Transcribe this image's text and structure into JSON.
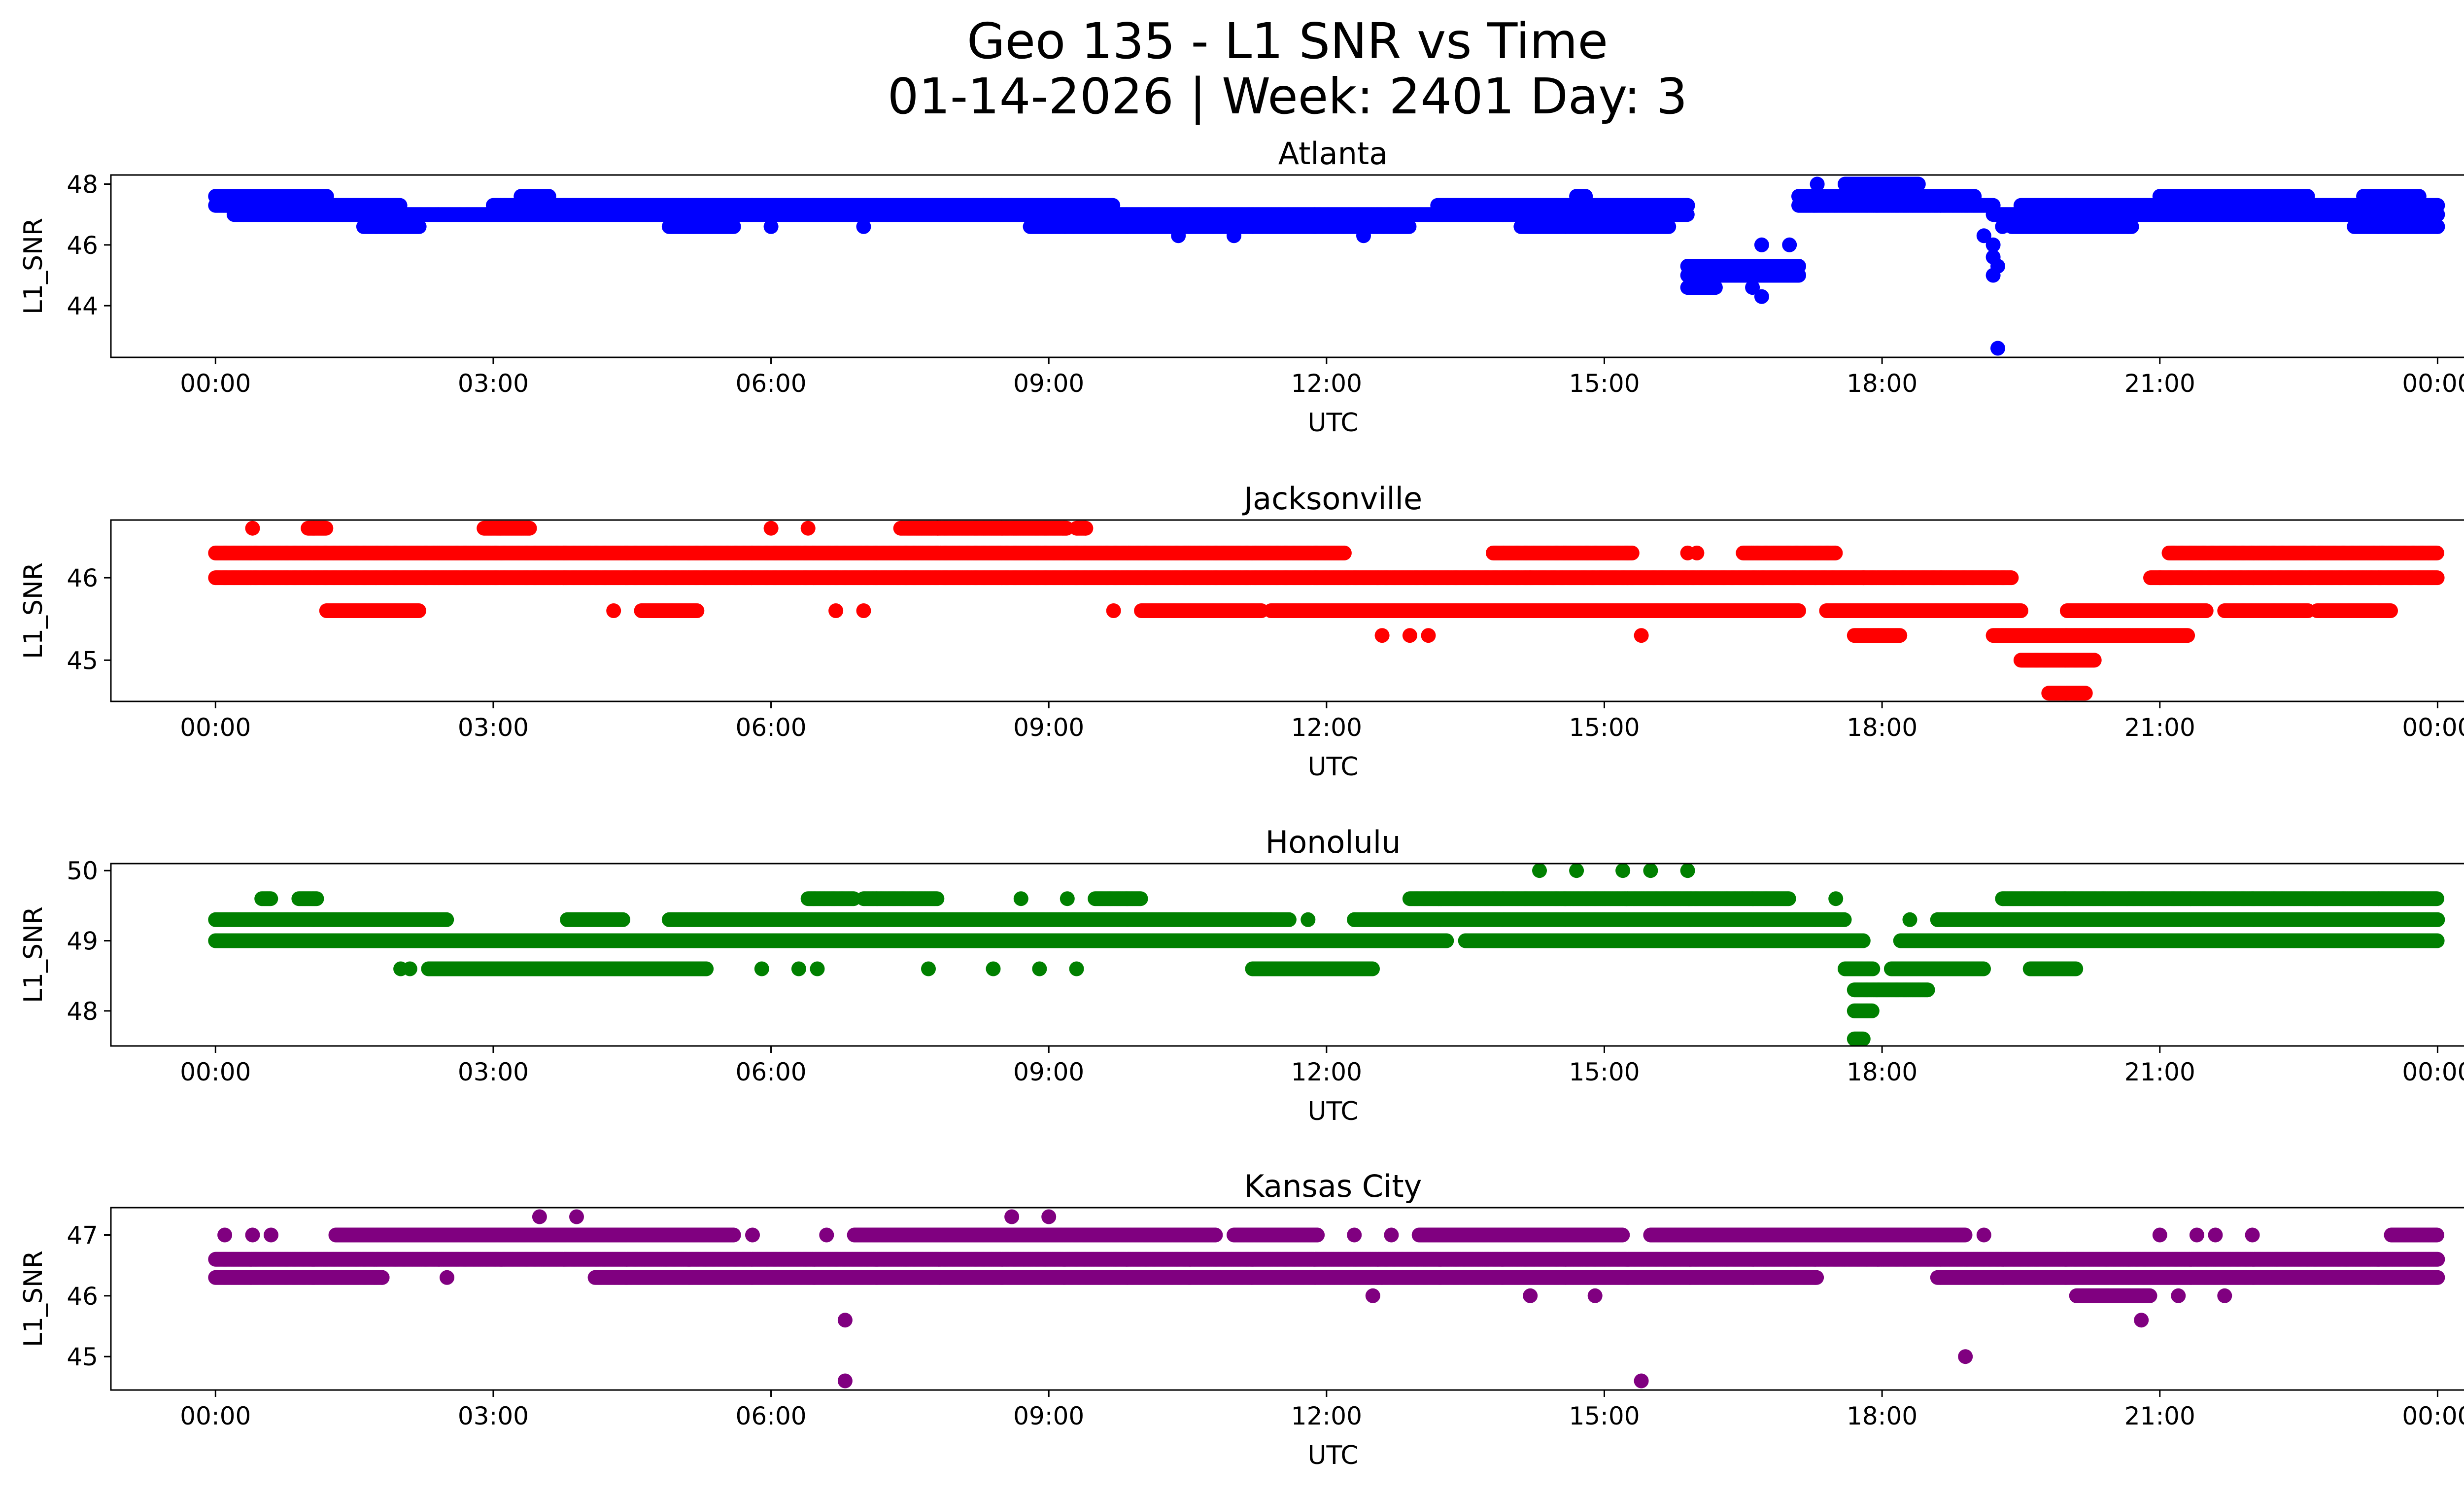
{
  "figure": {
    "title_line1": "Geo 135 - L1 SNR vs Time",
    "title_line2": "01-14-2026 | Week: 2401 Day: 3"
  },
  "chart_data": [
    {
      "type": "scatter",
      "title": "Atlanta",
      "xlabel": "UTC",
      "ylabel": "L1_SNR",
      "color": "#0000ff",
      "xlim_hours": [
        -1.13,
        25.27
      ],
      "ylim": [
        42.3,
        48.3
      ],
      "yticks": [
        44,
        46,
        48
      ],
      "xticks": [
        "00:00",
        "03:00",
        "06:00",
        "09:00",
        "12:00",
        "15:00",
        "18:00",
        "21:00",
        "00:00"
      ],
      "bands": [
        {
          "level": 47.6,
          "ranges": [
            [
              0,
              1.2
            ],
            [
              3.3,
              3.6
            ],
            [
              14.7,
              14.8
            ],
            [
              17.1,
              19.0
            ],
            [
              21.0,
              22.6
            ],
            [
              23.2,
              23.8
            ]
          ]
        },
        {
          "level": 47.3,
          "ranges": [
            [
              0,
              2.0
            ],
            [
              3.0,
              8.3
            ],
            [
              8.3,
              9.7
            ],
            [
              13.2,
              15.9
            ],
            [
              17.1,
              19.2
            ],
            [
              19.5,
              24.0
            ]
          ]
        },
        {
          "level": 47.0,
          "ranges": [
            [
              0.2,
              15.9
            ],
            [
              19.2,
              24.0
            ]
          ]
        },
        {
          "level": 46.6,
          "ranges": [
            [
              1.6,
              2.2
            ],
            [
              4.9,
              5.6
            ],
            [
              8.8,
              12.9
            ],
            [
              14.1,
              15.7
            ],
            [
              19.4,
              20.7
            ],
            [
              23.1,
              24.0
            ]
          ]
        },
        {
          "level": 48.0,
          "ranges": [
            [
              17.6,
              18.4
            ]
          ]
        },
        {
          "level": 45.3,
          "ranges": [
            [
              15.9,
              17.1
            ]
          ]
        },
        {
          "level": 45.0,
          "ranges": [
            [
              15.9,
              17.1
            ]
          ]
        },
        {
          "level": 44.6,
          "ranges": [
            [
              15.9,
              16.2
            ]
          ]
        }
      ],
      "points": [
        [
          0.3,
          47.0
        ],
        [
          6.0,
          46.6
        ],
        [
          7.0,
          46.6
        ],
        [
          10.4,
          46.3
        ],
        [
          11.0,
          46.3
        ],
        [
          12.4,
          46.3
        ],
        [
          16.6,
          44.6
        ],
        [
          16.7,
          44.3
        ],
        [
          16.7,
          46.0
        ],
        [
          17.0,
          46.0
        ],
        [
          17.3,
          48.0
        ],
        [
          19.1,
          46.3
        ],
        [
          19.2,
          46.0
        ],
        [
          19.2,
          45.6
        ],
        [
          19.25,
          45.3
        ],
        [
          19.2,
          45.0
        ],
        [
          19.3,
          46.6
        ],
        [
          19.25,
          42.6
        ],
        [
          24.0,
          46.6
        ]
      ]
    },
    {
      "type": "scatter",
      "title": "Jacksonville",
      "xlabel": "UTC",
      "ylabel": "L1_SNR",
      "color": "#ff0000",
      "xlim_hours": [
        -1.13,
        25.27
      ],
      "ylim": [
        44.5,
        46.7
      ],
      "yticks": [
        45,
        46
      ],
      "xticks": [
        "00:00",
        "03:00",
        "06:00",
        "09:00",
        "12:00",
        "15:00",
        "18:00",
        "21:00",
        "00:00"
      ],
      "bands": [
        {
          "level": 46.3,
          "ranges": [
            [
              0,
              12.2
            ],
            [
              13.8,
              15.3
            ],
            [
              16.5,
              17.5
            ],
            [
              21.1,
              24.0
            ]
          ]
        },
        {
          "level": 46.0,
          "ranges": [
            [
              0,
              14.2
            ],
            [
              14.2,
              17.8
            ],
            [
              17.8,
              19.4
            ],
            [
              20.9,
              24.0
            ]
          ]
        },
        {
          "level": 45.6,
          "ranges": [
            [
              1.2,
              2.2
            ],
            [
              4.6,
              5.2
            ],
            [
              10.0,
              11.3
            ],
            [
              11.4,
              17.1
            ],
            [
              17.4,
              19.5
            ],
            [
              20.0,
              21.5
            ],
            [
              21.7,
              22.6
            ],
            [
              22.7,
              23.5
            ]
          ]
        },
        {
          "level": 45.3,
          "ranges": [
            [
              17.7,
              18.2
            ],
            [
              19.2,
              21.3
            ]
          ]
        },
        {
          "level": 45.0,
          "ranges": [
            [
              19.5,
              20.3
            ]
          ]
        },
        {
          "level": 44.6,
          "ranges": [
            [
              19.8,
              20.2
            ]
          ]
        },
        {
          "level": 46.6,
          "ranges": [
            [
              1.0,
              1.2
            ],
            [
              2.9,
              3.4
            ],
            [
              7.4,
              7.8
            ],
            [
              7.8,
              9.2
            ],
            [
              9.3,
              9.4
            ]
          ]
        }
      ],
      "points": [
        [
          0.4,
          46.6
        ],
        [
          6.0,
          46.6
        ],
        [
          6.4,
          46.6
        ],
        [
          9.4,
          46.6
        ],
        [
          4.3,
          45.6
        ],
        [
          6.7,
          45.6
        ],
        [
          7.0,
          45.6
        ],
        [
          9.7,
          45.6
        ],
        [
          12.6,
          45.3
        ],
        [
          12.9,
          45.3
        ],
        [
          13.1,
          45.3
        ],
        [
          15.4,
          45.3
        ],
        [
          15.9,
          46.3
        ],
        [
          16.0,
          46.3
        ],
        [
          21.0,
          46.0
        ]
      ]
    },
    {
      "type": "scatter",
      "title": "Honolulu",
      "xlabel": "UTC",
      "ylabel": "L1_SNR",
      "color": "#008000",
      "xlim_hours": [
        -1.13,
        25.27
      ],
      "ylim": [
        47.5,
        50.1
      ],
      "yticks": [
        48,
        49,
        50
      ],
      "xticks": [
        "00:00",
        "03:00",
        "06:00",
        "09:00",
        "12:00",
        "15:00",
        "18:00",
        "21:00",
        "00:00"
      ],
      "bands": [
        {
          "level": 49.3,
          "ranges": [
            [
              0,
              2.5
            ],
            [
              3.8,
              4.4
            ],
            [
              4.9,
              11.6
            ],
            [
              12.3,
              17.6
            ],
            [
              18.6,
              24.0
            ]
          ]
        },
        {
          "level": 49.0,
          "ranges": [
            [
              0,
              13.3
            ],
            [
              13.5,
              17.4
            ],
            [
              17.4,
              17.8
            ],
            [
              18.2,
              24.0
            ]
          ]
        },
        {
          "level": 48.6,
          "ranges": [
            [
              2.3,
              5.3
            ],
            [
              11.2,
              12.5
            ],
            [
              17.6,
              17.9
            ],
            [
              18.1,
              19.1
            ],
            [
              19.6,
              20.1
            ]
          ]
        },
        {
          "level": 49.6,
          "ranges": [
            [
              0.5,
              0.6
            ],
            [
              0.9,
              1.1
            ],
            [
              6.4,
              6.9
            ],
            [
              7.0,
              7.8
            ],
            [
              9.5,
              10.0
            ],
            [
              12.9,
              17.0
            ],
            [
              19.3,
              24.0
            ]
          ]
        },
        {
          "level": 48.3,
          "ranges": [
            [
              17.7,
              18.5
            ]
          ]
        },
        {
          "level": 48.0,
          "ranges": [
            [
              17.7,
              17.9
            ]
          ]
        },
        {
          "level": 47.6,
          "ranges": [
            [
              17.7,
              17.8
            ]
          ]
        }
      ],
      "points": [
        [
          2.0,
          48.6
        ],
        [
          2.1,
          48.6
        ],
        [
          5.9,
          48.6
        ],
        [
          6.3,
          48.6
        ],
        [
          6.5,
          48.6
        ],
        [
          7.7,
          48.6
        ],
        [
          8.4,
          48.6
        ],
        [
          8.9,
          48.6
        ],
        [
          9.3,
          48.6
        ],
        [
          8.7,
          49.6
        ],
        [
          9.2,
          49.6
        ],
        [
          11.4,
          49.3
        ],
        [
          11.8,
          49.3
        ],
        [
          12.3,
          49.3
        ],
        [
          13.6,
          49.0
        ],
        [
          13.9,
          49.0
        ],
        [
          14.3,
          50.0
        ],
        [
          14.7,
          50.0
        ],
        [
          15.2,
          50.0
        ],
        [
          15.5,
          50.0
        ],
        [
          15.9,
          50.0
        ],
        [
          17.5,
          49.6
        ],
        [
          18.3,
          49.3
        ],
        [
          18.6,
          49.3
        ]
      ]
    },
    {
      "type": "scatter",
      "title": "Kansas City",
      "xlabel": "UTC",
      "ylabel": "L1_SNR",
      "color": "#800080",
      "xlim_hours": [
        -1.13,
        25.27
      ],
      "ylim": [
        44.45,
        47.45
      ],
      "yticks": [
        45,
        46,
        47
      ],
      "xticks": [
        "00:00",
        "03:00",
        "06:00",
        "09:00",
        "12:00",
        "15:00",
        "18:00",
        "21:00",
        "00:00"
      ],
      "bands": [
        {
          "level": 47.0,
          "ranges": [
            [
              1.3,
              5.6
            ],
            [
              6.9,
              10.8
            ],
            [
              11.0,
              11.9
            ],
            [
              13.0,
              15.2
            ],
            [
              15.5,
              18.9
            ],
            [
              23.5,
              24.0
            ]
          ]
        },
        {
          "level": 46.6,
          "ranges": [
            [
              0,
              24.0
            ]
          ]
        },
        {
          "level": 46.3,
          "ranges": [
            [
              0,
              1.8
            ],
            [
              4.1,
              12.6
            ],
            [
              12.6,
              17.3
            ],
            [
              18.6,
              24.0
            ]
          ]
        },
        {
          "level": 46.0,
          "ranges": [
            [
              20.1,
              20.9
            ]
          ]
        }
      ],
      "points": [
        [
          0.1,
          47.0
        ],
        [
          0.4,
          47.0
        ],
        [
          0.6,
          47.0
        ],
        [
          1.8,
          46.3
        ],
        [
          2.5,
          46.3
        ],
        [
          3.5,
          47.3
        ],
        [
          3.9,
          47.3
        ],
        [
          5.8,
          47.0
        ],
        [
          6.6,
          47.0
        ],
        [
          6.8,
          45.6
        ],
        [
          6.8,
          44.6
        ],
        [
          8.6,
          47.3
        ],
        [
          9.0,
          47.3
        ],
        [
          12.5,
          46.0
        ],
        [
          12.3,
          47.0
        ],
        [
          12.7,
          47.0
        ],
        [
          13.4,
          47.0
        ],
        [
          14.2,
          46.0
        ],
        [
          14.9,
          46.0
        ],
        [
          15.4,
          44.6
        ],
        [
          18.9,
          45.0
        ],
        [
          19.1,
          47.0
        ],
        [
          21.0,
          47.0
        ],
        [
          21.4,
          47.0
        ],
        [
          21.6,
          47.0
        ],
        [
          22.0,
          47.0
        ],
        [
          20.8,
          45.6
        ],
        [
          21.7,
          46.0
        ],
        [
          21.2,
          46.0
        ]
      ]
    }
  ]
}
